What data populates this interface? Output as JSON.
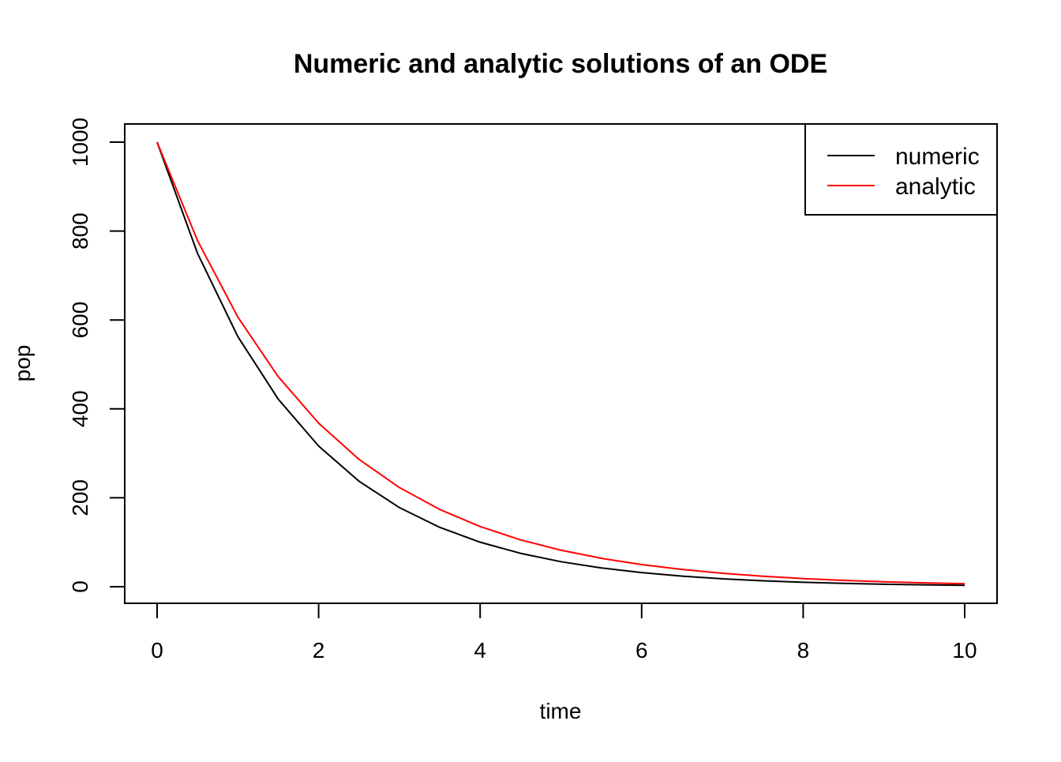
{
  "chart_data": {
    "type": "line",
    "title": "Numeric and analytic solutions of an ODE",
    "xlabel": "time",
    "ylabel": "pop",
    "xlim": [
      0,
      10
    ],
    "ylim": [
      0,
      1000
    ],
    "x_ticks": [
      "0",
      "2",
      "4",
      "6",
      "8",
      "10"
    ],
    "y_ticks": [
      "0",
      "200",
      "400",
      "600",
      "800",
      "1000"
    ],
    "grid": false,
    "legend_position": "top-right",
    "x": [
      0,
      0.5,
      1,
      1.5,
      2,
      2.5,
      3,
      3.5,
      4,
      4.5,
      5,
      5.5,
      6,
      6.5,
      7,
      7.5,
      8,
      8.5,
      9,
      9.5,
      10
    ],
    "series": [
      {
        "name": "numeric",
        "color": "#000000",
        "values": [
          1000,
          750,
          562.5,
          421.9,
          316.4,
          237.3,
          178.0,
          133.5,
          100.1,
          75.1,
          56.3,
          42.2,
          31.7,
          23.8,
          17.8,
          13.4,
          10.0,
          7.5,
          5.6,
          4.2,
          3.2
        ]
      },
      {
        "name": "analytic",
        "color": "#ff0000",
        "values": [
          1000,
          778.8,
          606.5,
          472.4,
          367.9,
          286.5,
          223.1,
          173.8,
          135.3,
          105.4,
          82.1,
          63.9,
          49.8,
          38.8,
          30.2,
          23.5,
          18.3,
          14.3,
          11.1,
          8.7,
          6.7
        ]
      }
    ]
  }
}
